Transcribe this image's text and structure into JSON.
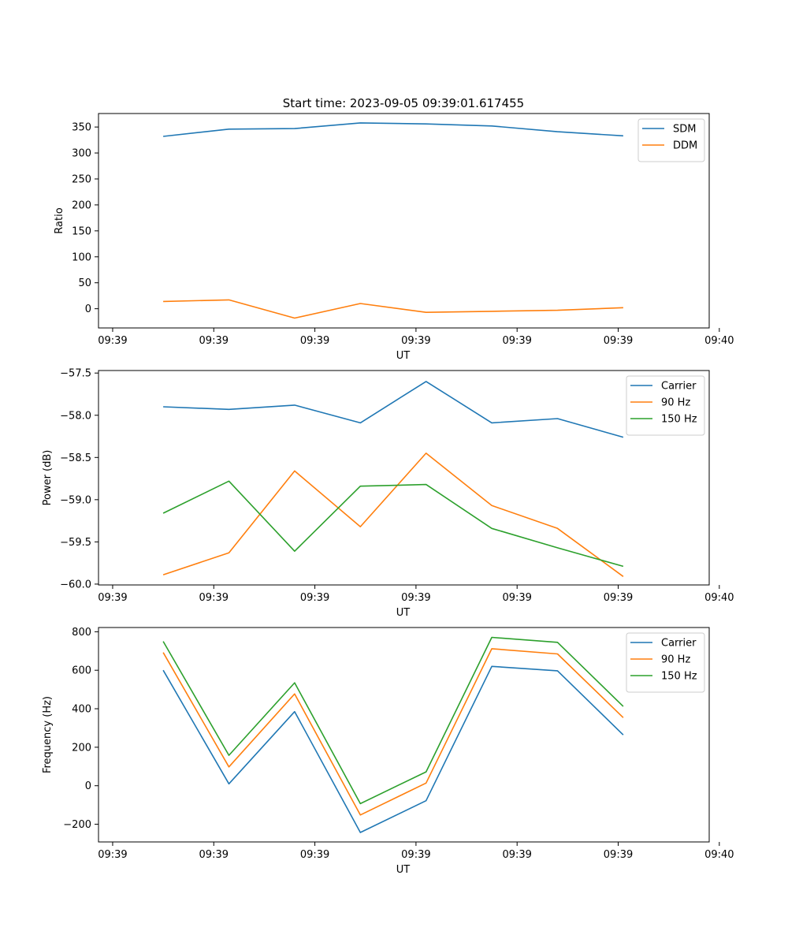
{
  "title": "Start time: 2023-09-05 09:39:01.617455",
  "chart_data": [
    {
      "type": "line",
      "xlabel": "UT",
      "ylabel": "Ratio",
      "x_tick_labels": [
        "09:39",
        "09:39",
        "09:39",
        "09:39",
        "09:39",
        "09:39",
        "09:40"
      ],
      "y_ticks": [
        0,
        50,
        100,
        150,
        200,
        250,
        300,
        350
      ],
      "ylim": [
        -37,
        376
      ],
      "x": [
        0.5,
        1.15,
        1.8,
        2.45,
        3.1,
        3.75,
        4.4,
        5.05
      ],
      "legend_position": "top-right",
      "series": [
        {
          "name": "SDM",
          "color": "#1f77b4",
          "values": [
            332,
            346,
            347,
            358,
            356,
            352,
            341,
            333
          ]
        },
        {
          "name": "DDM",
          "color": "#ff7f0e",
          "values": [
            14,
            17,
            -18,
            10,
            -7,
            -5,
            -3,
            2
          ]
        }
      ]
    },
    {
      "type": "line",
      "xlabel": "UT",
      "ylabel": "Power (dB)",
      "x_tick_labels": [
        "09:39",
        "09:39",
        "09:39",
        "09:39",
        "09:39",
        "09:39",
        "09:40"
      ],
      "y_ticks": [
        -60.0,
        -59.5,
        -59.0,
        -58.5,
        -58.0,
        -57.5
      ],
      "y_tick_labels": [
        "−60.0",
        "−59.5",
        "−59.0",
        "−58.5",
        "−58.0",
        "−57.5"
      ],
      "ylim": [
        -60.01,
        -57.47
      ],
      "x": [
        0.5,
        1.15,
        1.8,
        2.45,
        3.1,
        3.75,
        4.4,
        5.05
      ],
      "legend_position": "top-right",
      "series": [
        {
          "name": "Carrier",
          "color": "#1f77b4",
          "values": [
            -57.9,
            -57.93,
            -57.88,
            -58.09,
            -57.6,
            -58.09,
            -58.04,
            -58.26
          ]
        },
        {
          "name": "90 Hz",
          "color": "#ff7f0e",
          "values": [
            -59.89,
            -59.63,
            -58.66,
            -59.32,
            -58.45,
            -59.07,
            -59.34,
            -59.91
          ]
        },
        {
          "name": "150 Hz",
          "color": "#2ca02c",
          "values": [
            -59.16,
            -58.78,
            -59.61,
            -58.84,
            -58.82,
            -59.34,
            -59.57,
            -59.79
          ]
        }
      ]
    },
    {
      "type": "line",
      "xlabel": "UT",
      "ylabel": "Frequency (Hz)",
      "x_tick_labels": [
        "09:39",
        "09:39",
        "09:39",
        "09:39",
        "09:39",
        "09:39",
        "09:40"
      ],
      "y_ticks": [
        -200,
        0,
        200,
        400,
        600,
        800
      ],
      "y_tick_labels": [
        "−200",
        "0",
        "200",
        "400",
        "600",
        "800"
      ],
      "ylim": [
        -292,
        822
      ],
      "x": [
        0.5,
        1.15,
        1.8,
        2.45,
        3.1,
        3.75,
        4.4,
        5.05
      ],
      "legend_position": "top-right",
      "series": [
        {
          "name": "Carrier",
          "color": "#1f77b4",
          "values": [
            600,
            10,
            385,
            -243,
            -78,
            620,
            597,
            264
          ]
        },
        {
          "name": "90 Hz",
          "color": "#ff7f0e",
          "values": [
            692,
            98,
            477,
            -152,
            14,
            712,
            685,
            354
          ]
        },
        {
          "name": "150 Hz",
          "color": "#2ca02c",
          "values": [
            750,
            158,
            535,
            -93,
            72,
            771,
            745,
            412
          ]
        }
      ]
    }
  ]
}
